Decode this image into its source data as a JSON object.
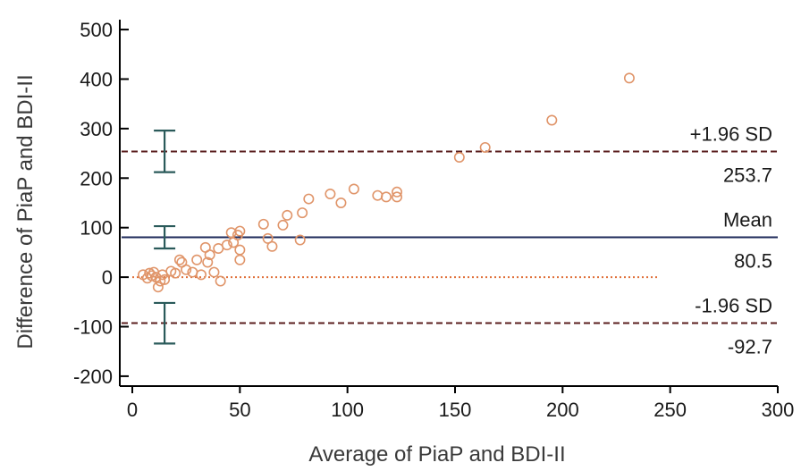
{
  "chart_data": {
    "type": "scatter",
    "title": "",
    "xlabel": "Average of PiaP and BDI-II",
    "ylabel": "Difference of PiaP and BDI-II",
    "xlim": [
      0,
      300
    ],
    "ylim": [
      -220,
      520
    ],
    "x_ticks": [
      0,
      50,
      100,
      150,
      200,
      250,
      300
    ],
    "y_ticks": [
      -200,
      -100,
      0,
      100,
      200,
      300,
      400,
      500
    ],
    "x_tick_labels": [
      "0",
      "50",
      "100",
      "150",
      "200",
      "250",
      "300"
    ],
    "y_tick_labels": [
      "-200",
      "-100",
      "0",
      "100",
      "200",
      "300",
      "400",
      "500"
    ],
    "grid": false,
    "points": {
      "marker": "open-circle",
      "color": "#e0956a",
      "x": [
        5,
        7,
        8,
        9,
        10,
        11,
        12,
        13,
        14,
        15,
        18,
        20,
        22,
        23,
        25,
        28,
        30,
        32,
        34,
        35,
        36,
        38,
        40,
        41,
        44,
        46,
        47,
        49,
        50,
        50,
        50,
        61,
        63,
        65,
        70,
        72,
        78,
        79,
        82,
        92,
        97,
        103,
        114,
        118,
        123,
        123,
        152,
        164,
        195,
        231
      ],
      "y": [
        5,
        -2,
        8,
        3,
        10,
        0,
        -20,
        -8,
        5,
        -5,
        12,
        8,
        35,
        30,
        15,
        10,
        35,
        5,
        60,
        30,
        45,
        10,
        58,
        -8,
        65,
        90,
        70,
        85,
        93,
        55,
        35,
        107,
        78,
        62,
        105,
        125,
        75,
        130,
        158,
        168,
        150,
        178,
        165,
        162,
        172,
        162,
        242,
        262,
        317,
        402
      ]
    },
    "reference_lines": [
      {
        "name": "mean",
        "value": 80.5,
        "style": "solid",
        "color": "#1e2a5a",
        "label_top": "Mean",
        "label_bottom": "80.5",
        "ci": [
          58,
          103
        ]
      },
      {
        "name": "upper_loa",
        "value": 253.7,
        "style": "dashed",
        "color": "#5a1e1e",
        "label_top": "+1.96 SD",
        "label_bottom": "253.7",
        "ci": [
          212,
          296
        ]
      },
      {
        "name": "lower_loa",
        "value": -92.7,
        "style": "dashed",
        "color": "#5a1e1e",
        "label_top": "-1.96 SD",
        "label_bottom": "-92.7",
        "ci": [
          -134,
          -52
        ]
      },
      {
        "name": "zero",
        "value": 0,
        "style": "dotted",
        "color": "#e0703a",
        "x_end": 245
      }
    ],
    "ci_bars_x": 15,
    "ci_bar_color": "#2a5a5a"
  }
}
